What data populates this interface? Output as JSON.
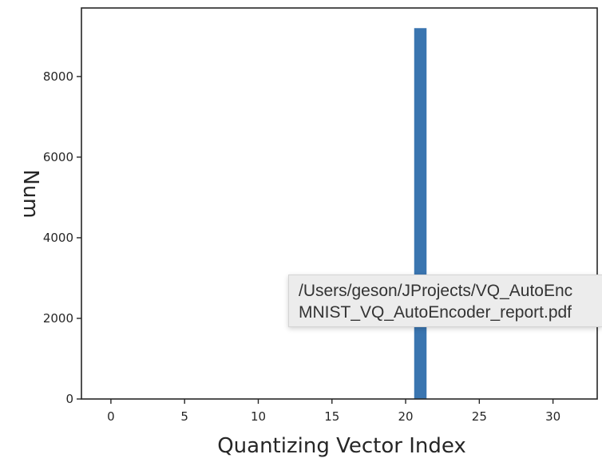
{
  "chart_data": {
    "type": "bar",
    "xlabel": "Quantizing Vector Index",
    "ylabel": "Num",
    "xlim": [
      -2,
      33
    ],
    "ylim": [
      0,
      9700
    ],
    "xticks": [
      0,
      5,
      10,
      15,
      20,
      25,
      30
    ],
    "yticks": [
      0,
      2000,
      4000,
      6000,
      8000
    ],
    "grid": false,
    "bar_color": "#3a75b0",
    "x": [
      21
    ],
    "values": [
      9200
    ]
  },
  "tooltip": {
    "line1": "/Users/geson/JProjects/VQ_AutoEnc",
    "line2": "MNIST_VQ_AutoEncoder_report.pdf"
  }
}
